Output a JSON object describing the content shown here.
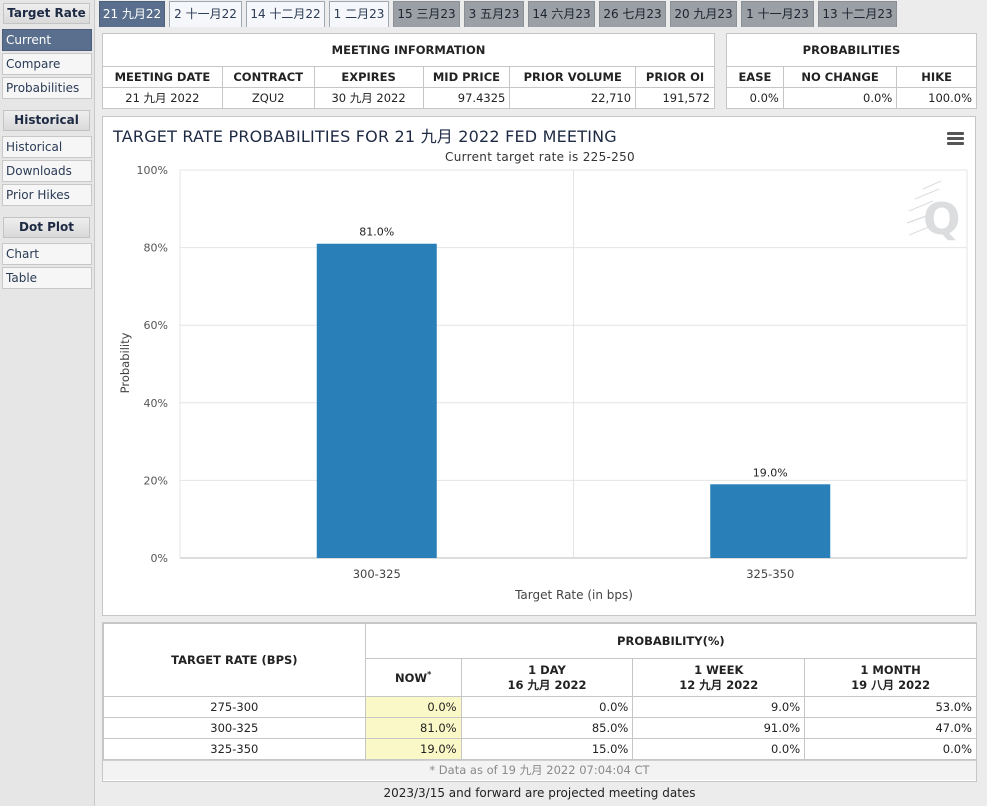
{
  "sidebar": {
    "sections": [
      {
        "header": "Target Rate",
        "items": [
          "Current",
          "Compare",
          "Probabilities"
        ]
      },
      {
        "header": "Historical",
        "items": [
          "Historical",
          "Downloads",
          "Prior Hikes"
        ]
      },
      {
        "header": "Dot Plot",
        "items": [
          "Chart",
          "Table"
        ]
      }
    ]
  },
  "tabs": [
    {
      "label": "21 九月22",
      "state": "active"
    },
    {
      "label": "2 十一月22",
      "state": "normal"
    },
    {
      "label": "14 十二月22",
      "state": "normal"
    },
    {
      "label": "1 二月23",
      "state": "normal"
    },
    {
      "label": "15 三月23",
      "state": "future"
    },
    {
      "label": "3 五月23",
      "state": "future"
    },
    {
      "label": "14 六月23",
      "state": "future"
    },
    {
      "label": "26 七月23",
      "state": "future"
    },
    {
      "label": "20 九月23",
      "state": "future"
    },
    {
      "label": "1 十一月23",
      "state": "future"
    },
    {
      "label": "13 十二月23",
      "state": "future"
    }
  ],
  "meeting_info": {
    "title": "MEETING INFORMATION",
    "headers": [
      "MEETING DATE",
      "CONTRACT",
      "EXPIRES",
      "MID PRICE",
      "PRIOR VOLUME",
      "PRIOR OI"
    ],
    "row": [
      "21 九月 2022",
      "ZQU2",
      "30 九月 2022",
      "97.4325",
      "22,710",
      "191,572"
    ]
  },
  "probabilities": {
    "title": "PROBABILITIES",
    "headers": [
      "EASE",
      "NO CHANGE",
      "HIKE"
    ],
    "row": [
      "0.0%",
      "0.0%",
      "100.0%"
    ]
  },
  "chart_data": {
    "type": "bar",
    "title": "TARGET RATE PROBABILITIES FOR 21 九月 2022 FED MEETING",
    "subtitle": "Current target rate is 225-250",
    "categories": [
      "300-325",
      "325-350"
    ],
    "values": [
      81.0,
      19.0
    ],
    "data_labels": [
      "81.0%",
      "19.0%"
    ],
    "xlabel": "Target Rate (in bps)",
    "ylabel": "Probability",
    "ylim": [
      0,
      100
    ],
    "yticks": [
      "0%",
      "20%",
      "40%",
      "60%",
      "80%",
      "100%"
    ],
    "grid": true,
    "bar_color": "#2980b9",
    "watermark_icon": "q-logo-icon"
  },
  "prob_table": {
    "col_header": "TARGET RATE (BPS)",
    "group_header": "PROBABILITY(%)",
    "now_label": "NOW",
    "now_mark": "*",
    "periods": [
      {
        "line1": "1 DAY",
        "line2": "16 九月 2022"
      },
      {
        "line1": "1 WEEK",
        "line2": "12 九月 2022"
      },
      {
        "line1": "1 MONTH",
        "line2": "19 八月 2022"
      }
    ],
    "rows": [
      {
        "rate": "275-300",
        "now": "0.0%",
        "day": "0.0%",
        "week": "9.0%",
        "month": "53.0%"
      },
      {
        "rate": "300-325",
        "now": "81.0%",
        "day": "85.0%",
        "week": "91.0%",
        "month": "47.0%"
      },
      {
        "rate": "325-350",
        "now": "19.0%",
        "day": "15.0%",
        "week": "0.0%",
        "month": "0.0%"
      }
    ],
    "footnote": "* Data as of 19 九月 2022 07:04:04 CT"
  },
  "projected_note": "2023/3/15 and forward are projected meeting dates"
}
